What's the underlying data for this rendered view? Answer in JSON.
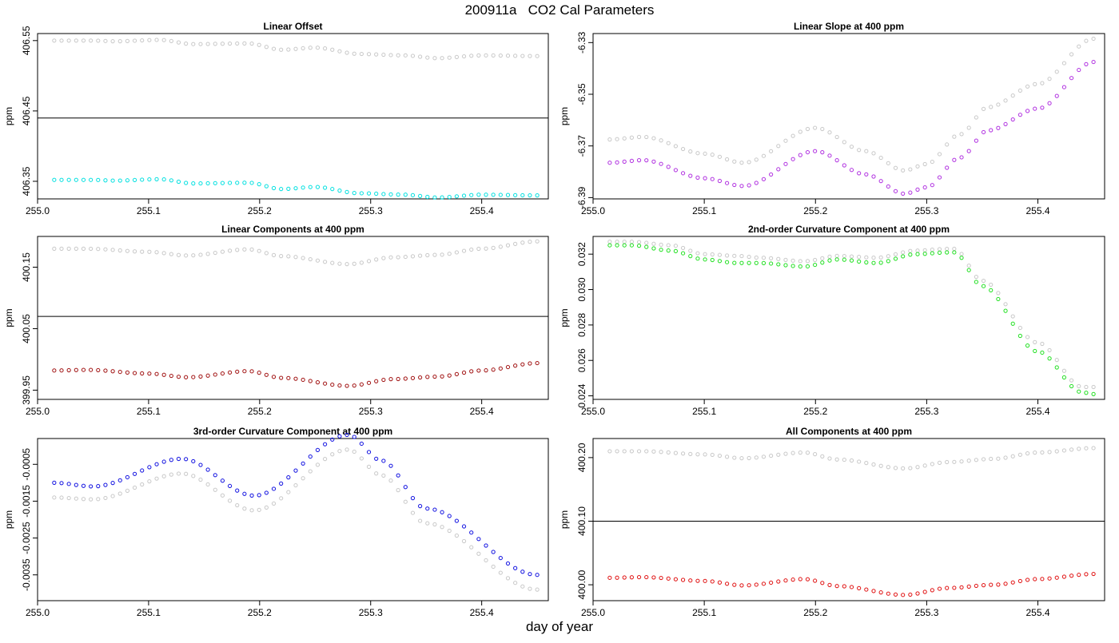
{
  "figure": {
    "title": "200911a   CO2 Cal Parameters",
    "xlabel": "day of year"
  },
  "chart_data": [
    {
      "type": "scatter",
      "title": "Linear Offset",
      "xlabel": "",
      "ylabel": "ppm",
      "xlim": [
        255.0,
        255.46
      ],
      "ylim": [
        406.325,
        406.56
      ],
      "xticks": [
        "255.0",
        "255.1",
        "255.2",
        "255.3",
        "255.4"
      ],
      "yticks": [
        "406.35",
        "406.45",
        "406.55"
      ],
      "hline": 406.44,
      "x_start": 255.015,
      "x_end": 255.45,
      "n_points": 67,
      "series": [
        {
          "color": "#c8c8c8",
          "kx": [
            255.015,
            255.05,
            255.07,
            255.11,
            255.14,
            255.19,
            255.22,
            255.25,
            255.29,
            255.33,
            255.36,
            255.4,
            255.45
          ],
          "ky": [
            406.55,
            406.55,
            406.549,
            406.551,
            406.545,
            406.546,
            406.537,
            406.54,
            406.531,
            406.529,
            406.525,
            406.529,
            406.528
          ]
        },
        {
          "color": "#00e0e0",
          "kx": [
            255.015,
            255.05,
            255.07,
            255.11,
            255.14,
            255.19,
            255.22,
            255.25,
            255.29,
            255.33,
            255.36,
            255.4,
            255.45
          ],
          "ky": [
            406.352,
            406.352,
            406.351,
            406.353,
            406.347,
            406.348,
            406.339,
            406.342,
            406.333,
            406.331,
            406.327,
            406.331,
            406.33
          ]
        }
      ]
    },
    {
      "type": "scatter",
      "title": "Linear Slope at 400 ppm",
      "xlabel": "",
      "ylabel": "ppm",
      "xlim": [
        255.0,
        255.46
      ],
      "ylim": [
        -6.3905,
        -6.3265
      ],
      "xticks": [
        "255.0",
        "255.1",
        "255.2",
        "255.3",
        "255.4"
      ],
      "yticks": [
        "-6.33",
        "-6.35",
        "-6.37",
        "-6.39"
      ],
      "x_start": 255.015,
      "x_end": 255.45,
      "n_points": 67,
      "series": [
        {
          "color": "#c8c8c8",
          "kx": [
            255.015,
            255.045,
            255.1,
            255.135,
            255.2,
            255.245,
            255.28,
            255.3,
            255.33,
            255.355,
            255.4,
            255.45
          ],
          "ky": [
            -6.3675,
            -6.3665,
            -6.373,
            -6.3765,
            -6.363,
            -6.372,
            -6.3795,
            -6.377,
            -6.3655,
            -6.355,
            -6.346,
            -6.3285
          ]
        },
        {
          "color": "#b030e0",
          "kx": [
            255.015,
            255.045,
            255.1,
            255.135,
            255.2,
            255.245,
            255.28,
            255.3,
            255.33,
            255.355,
            255.4,
            255.45
          ],
          "ky": [
            -6.3765,
            -6.3755,
            -6.3825,
            -6.3855,
            -6.372,
            -6.381,
            -6.3885,
            -6.386,
            -6.3745,
            -6.364,
            -6.3555,
            -6.3375
          ]
        }
      ]
    },
    {
      "type": "scatter",
      "title": "Linear Components at 400 ppm",
      "xlabel": "",
      "ylabel": "ppm",
      "xlim": [
        255.0,
        255.46
      ],
      "ylim": [
        399.935,
        400.2
      ],
      "xticks": [
        "255.0",
        "255.1",
        "255.2",
        "255.3",
        "255.4"
      ],
      "yticks": [
        "399.95",
        "400.05",
        "400.15"
      ],
      "hline": 400.07,
      "x_start": 255.015,
      "x_end": 255.45,
      "n_points": 67,
      "series": [
        {
          "color": "#c8c8c8",
          "kx": [
            255.015,
            255.045,
            255.1,
            255.135,
            255.19,
            255.22,
            255.28,
            255.32,
            255.36,
            255.4,
            255.45
          ],
          "ky": [
            400.18,
            400.18,
            400.175,
            400.169,
            400.179,
            400.168,
            400.155,
            400.166,
            400.17,
            400.18,
            400.192
          ]
        },
        {
          "color": "#a01010",
          "kx": [
            255.015,
            255.045,
            255.1,
            255.135,
            255.19,
            255.22,
            255.28,
            255.32,
            255.36,
            255.4,
            255.45
          ],
          "ky": [
            399.982,
            399.983,
            399.977,
            399.971,
            399.981,
            399.97,
            399.957,
            399.968,
            399.972,
            399.982,
            399.994
          ]
        }
      ]
    },
    {
      "type": "scatter",
      "title": "2nd-order Curvature Component at 400 ppm",
      "xlabel": "",
      "ylabel": "ppm",
      "xlim": [
        255.0,
        255.46
      ],
      "ylim": [
        0.0238,
        0.033
      ],
      "xticks": [
        "255.0",
        "255.1",
        "255.2",
        "255.3",
        "255.4"
      ],
      "yticks": [
        "0.024",
        "0.026",
        "0.028",
        "0.030",
        "0.032"
      ],
      "x_start": 255.015,
      "x_end": 255.45,
      "n_points": 67,
      "series": [
        {
          "color": "#c8c8c8",
          "kx": [
            255.015,
            255.035,
            255.07,
            255.1,
            255.13,
            255.15,
            255.19,
            255.22,
            255.255,
            255.29,
            255.32,
            255.325,
            255.35,
            255.4,
            255.44,
            255.45
          ],
          "ky": [
            0.0327,
            0.0327,
            0.0325,
            0.032,
            0.0319,
            0.0318,
            0.0316,
            0.0319,
            0.0318,
            0.0322,
            0.0323,
            0.0323,
            0.0305,
            0.027,
            0.0245,
            0.0245
          ]
        },
        {
          "color": "#20e020",
          "kx": [
            255.015,
            255.035,
            255.07,
            255.1,
            255.13,
            255.15,
            255.19,
            255.22,
            255.255,
            255.29,
            255.32,
            255.325,
            255.35,
            255.4,
            255.44,
            255.45
          ],
          "ky": [
            0.0325,
            0.0325,
            0.0322,
            0.0317,
            0.0315,
            0.0315,
            0.0313,
            0.0317,
            0.0315,
            0.032,
            0.0321,
            0.0321,
            0.0302,
            0.0265,
            0.0242,
            0.0241
          ]
        }
      ]
    },
    {
      "type": "scatter",
      "title": "3rd-order Curvature Component at 400 ppm",
      "xlabel": "",
      "ylabel": "ppm",
      "xlim": [
        255.0,
        255.46
      ],
      "ylim": [
        -0.0042,
        0.0002
      ],
      "xticks": [
        "255.0",
        "255.1",
        "255.2",
        "255.3",
        "255.4"
      ],
      "yticks": [
        "-0.0005",
        "-0.0015",
        "-0.0025",
        "-0.0035"
      ],
      "x_start": 255.015,
      "x_end": 255.45,
      "n_points": 67,
      "series": [
        {
          "color": "#c8c8c8",
          "kx": [
            255.015,
            255.05,
            255.13,
            255.195,
            255.28,
            255.31,
            255.35,
            255.45
          ],
          "ky": [
            -0.0014,
            -0.00145,
            -0.00075,
            -0.00175,
            -0.0001,
            -0.0008,
            -0.0021,
            -0.0039
          ]
        },
        {
          "color": "#1010e0",
          "kx": [
            255.015,
            255.05,
            255.13,
            255.195,
            255.28,
            255.31,
            255.35,
            255.45
          ],
          "ky": [
            -0.001,
            -0.0011,
            -0.00035,
            -0.00135,
            0.0003,
            -0.0004,
            -0.0017,
            -0.0035
          ]
        }
      ]
    },
    {
      "type": "scatter",
      "title": "All Components at 400 ppm",
      "xlabel": "",
      "ylabel": "ppm",
      "xlim": [
        255.0,
        255.46
      ],
      "ylim": [
        399.975,
        400.23
      ],
      "xticks": [
        "255.0",
        "255.1",
        "255.2",
        "255.3",
        "255.4"
      ],
      "yticks": [
        "400.00",
        "400.10",
        "400.20"
      ],
      "hline": 400.1,
      "x_start": 255.015,
      "x_end": 255.45,
      "n_points": 67,
      "series": [
        {
          "color": "#c8c8c8",
          "kx": [
            255.015,
            255.045,
            255.1,
            255.135,
            255.19,
            255.22,
            255.28,
            255.32,
            255.36,
            255.4,
            255.45
          ],
          "ky": [
            400.21,
            400.21,
            400.205,
            400.199,
            400.208,
            400.197,
            400.183,
            400.193,
            400.198,
            400.208,
            400.215
          ]
        },
        {
          "color": "#e01010",
          "kx": [
            255.015,
            255.045,
            255.1,
            255.135,
            255.19,
            255.22,
            255.28,
            255.32,
            255.36,
            255.4,
            255.45
          ],
          "ky": [
            400.011,
            400.012,
            400.006,
            399.999,
            400.009,
            399.998,
            399.984,
            399.995,
            400.0,
            400.009,
            400.017
          ]
        }
      ]
    }
  ]
}
